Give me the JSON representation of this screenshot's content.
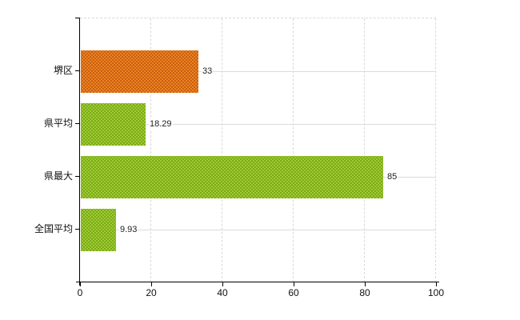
{
  "chart_data": {
    "type": "bar",
    "orientation": "horizontal",
    "title": "",
    "xlabel": "",
    "ylabel": "",
    "legend": null,
    "grid": true,
    "xlim": [
      0,
      100
    ],
    "x_ticks": [
      "0",
      "20",
      "40",
      "60",
      "80",
      "100"
    ],
    "categories": [
      "堺区",
      "県平均",
      "県最大",
      "全国平均"
    ],
    "values": [
      33,
      18.29,
      85,
      9.93
    ],
    "bars": [
      {
        "category": "堺区",
        "value": 33,
        "label": "33",
        "base_color": "#e8821e",
        "dot_color": "#c85a14"
      },
      {
        "category": "県平均",
        "value": 18.29,
        "label": "18.29",
        "base_color": "#9acb2d",
        "dot_color": "#7aa41c"
      },
      {
        "category": "県最大",
        "value": 85,
        "label": "85",
        "base_color": "#9acb2d",
        "dot_color": "#7aa41c"
      },
      {
        "category": "全国平均",
        "value": 9.93,
        "label": "9.93",
        "base_color": "#9acb2d",
        "dot_color": "#7aa41c"
      }
    ]
  },
  "colors": {
    "background": "#ffffff",
    "axis": "#000000",
    "gridline_dashed": "#d9d9d9",
    "gridline_solid": "#dcdcdc",
    "text": "#222222",
    "highlight_bar": "#e8821e",
    "normal_bar": "#9acb2d"
  }
}
